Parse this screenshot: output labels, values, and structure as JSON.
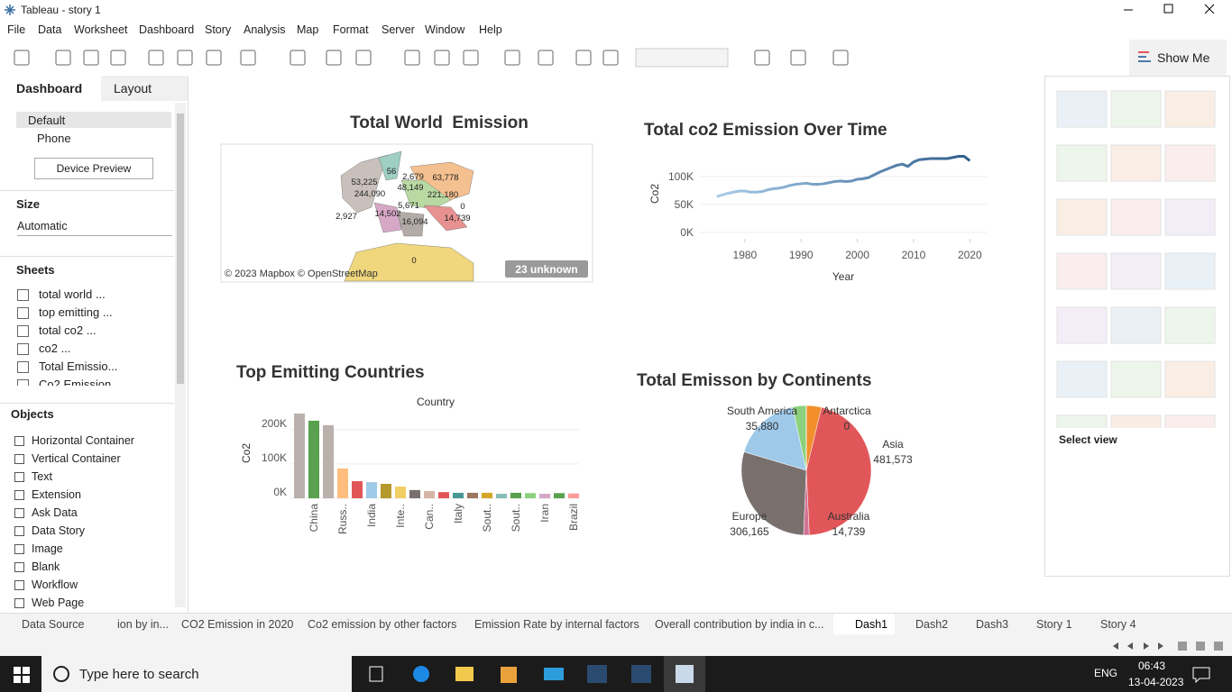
{
  "window": {
    "title": "Tableau - story 1"
  },
  "menu": [
    "File",
    "Data",
    "Worksheet",
    "Dashboard",
    "Story",
    "Analysis",
    "Map",
    "Format",
    "Server",
    "Window",
    "Help"
  ],
  "toolbar": {
    "show_me": "Show Me"
  },
  "left_panel": {
    "tabs": [
      "Dashboard",
      "Layout"
    ],
    "devices": [
      "Default",
      "Phone"
    ],
    "device_preview": "Device Preview",
    "size_heading": "Size",
    "size_value": "Automatic",
    "sheets_heading": "Sheets",
    "sheets": [
      "total world ...",
      "top emitting ...",
      "total co2 ...",
      "co2 ...",
      "Total Emissio...",
      "Co2 Emission..."
    ],
    "objects_heading": "Objects",
    "objects": [
      "Horizontal Container",
      "Vertical Container",
      "Text",
      "Extension",
      "Ask Data",
      "Data Story",
      "Image",
      "Blank",
      "Workflow",
      "Web Page"
    ]
  },
  "map": {
    "title": "Total World  Emission",
    "labels": [
      "53,225",
      "244,090",
      "56",
      "2,679",
      "63,778",
      "48,149",
      "221,180",
      "5,671",
      "0",
      "2,927",
      "14,502",
      "16,094",
      "14,739",
      "0"
    ],
    "attribution": "© 2023 Mapbox © OpenStreetMap",
    "unknown": "23 unknown"
  },
  "show_me": {
    "select_view": "Select view"
  },
  "sheet_tabs": [
    "Data Source",
    "ion by in...",
    "CO2 Emission in 2020",
    "Co2 emission by other factors",
    "Emission Rate by internal factors",
    "Overall contribution by india in c...",
    "Dash1",
    "Dash2",
    "Dash3",
    "Story 1",
    "Story 4"
  ],
  "taskbar": {
    "search": "Type here to search",
    "language": "ENG",
    "time": "06:43",
    "date": "13-04-2023"
  },
  "chart_data": [
    {
      "type": "line",
      "title": "Total co2 Emission Over Time",
      "x_label": "Year",
      "y_label": "Co2",
      "x": [
        1975,
        1976,
        1977,
        1978,
        1979,
        1980,
        1981,
        1982,
        1983,
        1984,
        1985,
        1986,
        1987,
        1988,
        1989,
        1990,
        1991,
        1992,
        1993,
        1994,
        1995,
        1996,
        1997,
        1998,
        1999,
        2000,
        2001,
        2002,
        2003,
        2004,
        2005,
        2006,
        2007,
        2008,
        2009,
        2010,
        2011,
        2012,
        2013,
        2014,
        2015,
        2016,
        2017,
        2018,
        2019,
        2020
      ],
      "values": [
        64000,
        67000,
        70000,
        72000,
        74000,
        74000,
        72000,
        72000,
        73000,
        76000,
        78000,
        79000,
        81000,
        84000,
        86000,
        87000,
        88000,
        86000,
        86000,
        87000,
        89000,
        91000,
        92000,
        91000,
        92000,
        95000,
        96000,
        98000,
        103000,
        108000,
        112000,
        116000,
        120000,
        122000,
        118000,
        126000,
        130000,
        131000,
        132000,
        132000,
        132000,
        132000,
        134000,
        136000,
        136000,
        128000
      ],
      "color": "#2f5f8f",
      "xlim": [
        1972,
        2023
      ],
      "xticks": [
        1980,
        1990,
        2000,
        2010,
        2020
      ],
      "ylim": [
        0,
        140000
      ],
      "yticks": [
        {
          "value": 0,
          "label": "0K"
        },
        {
          "value": 50000,
          "label": "50K"
        },
        {
          "value": 100000,
          "label": "100K"
        }
      ],
      "grid": true
    },
    {
      "type": "bar",
      "title": "Top Emitting Countries",
      "header": "Country",
      "y_label": "Co2",
      "categories": [
        null,
        "China",
        null,
        "Russ..",
        null,
        "India",
        null,
        "Inte..",
        null,
        "Can..",
        null,
        "Italy",
        null,
        "Sout..",
        null,
        "Sout..",
        null,
        "Iran",
        null,
        "Brazil"
      ],
      "values": [
        247000,
        226000,
        213000,
        87000,
        50000,
        47000,
        42000,
        34000,
        24000,
        21000,
        18000,
        16000,
        16000,
        16000,
        13000,
        16000,
        15000,
        13000,
        15000,
        14000
      ],
      "colors": [
        "#bab0ac",
        "#59a14f",
        "#bab0ac",
        "#ffbe7d",
        "#e15759",
        "#a0cbe8",
        "#b6992d",
        "#f1ce63",
        "#79706e",
        "#d7b5a6",
        "#e15759",
        "#499894",
        "#9d7660",
        "#d4a62a",
        "#86bcb6",
        "#59a14f",
        "#8cd17d",
        "#d4a6c8",
        "#59a14f",
        "#ff9d9a"
      ],
      "ylim": [
        0,
        260000
      ],
      "yticks": [
        {
          "value": 0,
          "label": "0K"
        },
        {
          "value": 100000,
          "label": "100K"
        },
        {
          "value": 200000,
          "label": "200K"
        }
      ],
      "grid": true
    },
    {
      "type": "pie",
      "title": "Total Emisson by Continents",
      "categories": [
        null,
        "Asia",
        "Australia",
        "Europe",
        null,
        "South America",
        "Antarctica"
      ],
      "values": [
        40000,
        481573,
        14739,
        306165,
        180000,
        35880,
        0
      ],
      "value_labels": [
        null,
        "481,573",
        "14,739",
        "306,165",
        null,
        "35,880",
        "0"
      ],
      "colors": [
        "#f28e2b",
        "#e15759",
        "#d37295",
        "#79706e",
        "#9ec9e9",
        "#8cd17d",
        "#b6992d"
      ]
    }
  ]
}
